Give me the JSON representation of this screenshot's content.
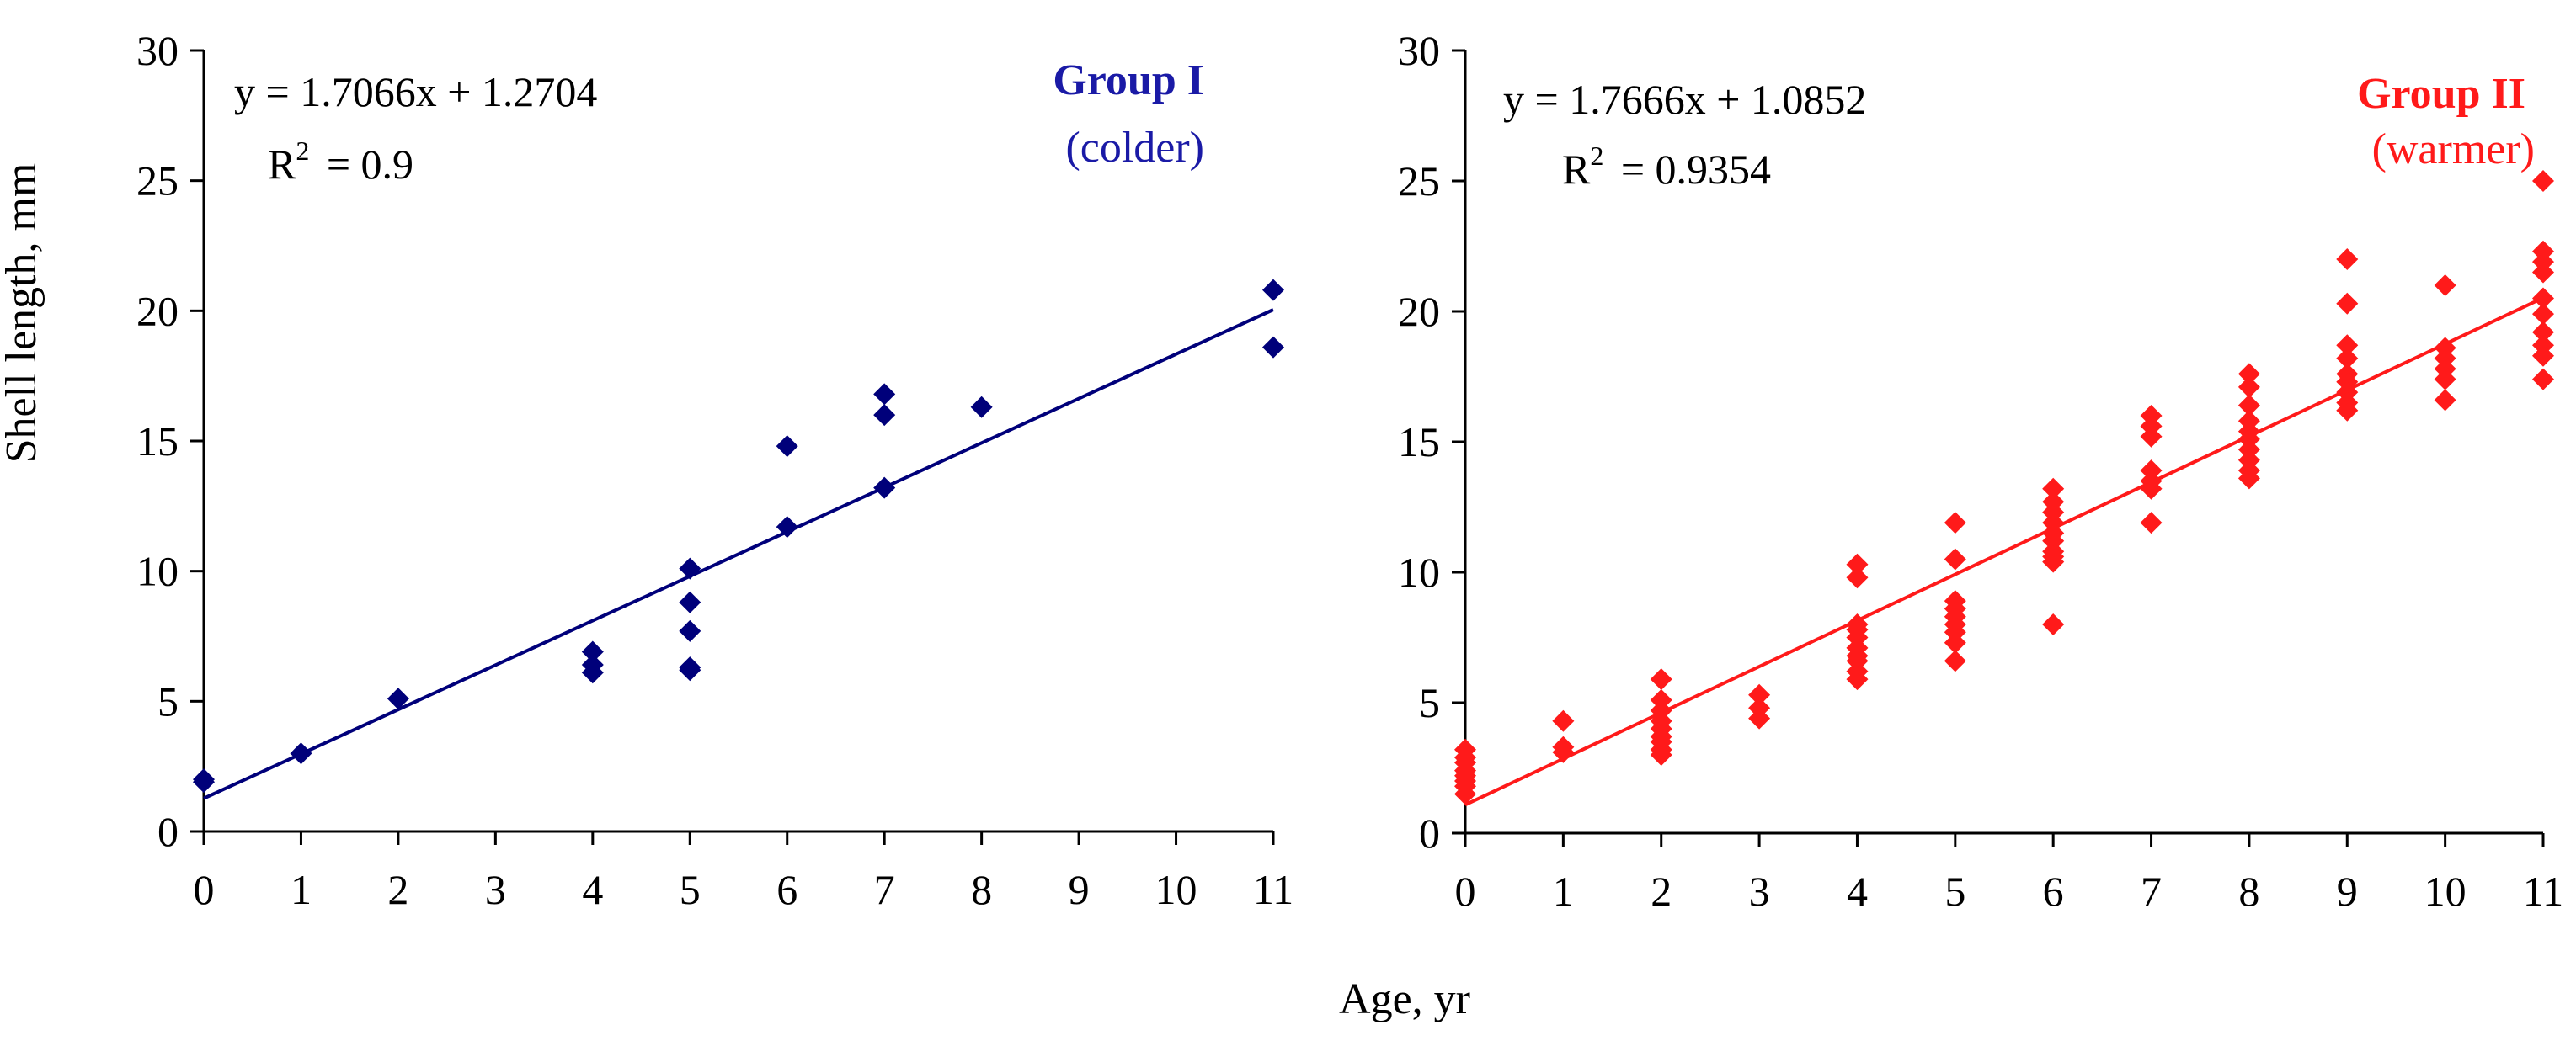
{
  "figure": {
    "ylabel": "Shell length, mm",
    "xlabel": "Age, yr"
  },
  "chart_data": [
    {
      "type": "scatter",
      "title": "Group I",
      "subtitle": "(colder)",
      "title_color": "#1a1aa6",
      "point_color": "#00007a",
      "line_color": "#00007a",
      "xlim": [
        0,
        11
      ],
      "ylim": [
        0,
        30
      ],
      "xticks": [
        0,
        1,
        2,
        3,
        4,
        5,
        6,
        7,
        8,
        9,
        10,
        11
      ],
      "yticks": [
        0,
        5,
        10,
        15,
        20,
        25,
        30
      ],
      "equation": "y = 1.7066x + 1.2704",
      "r2_label": "R",
      "r2_sup": "2",
      "r2_value": " = 0.9",
      "trendline": {
        "slope": 1.7066,
        "intercept": 1.2704
      },
      "x": [
        0,
        0,
        1,
        2,
        4,
        4,
        4,
        5,
        5,
        5,
        5,
        5,
        6,
        6,
        7,
        7,
        7,
        8,
        11,
        11
      ],
      "y": [
        2.0,
        1.9,
        3.0,
        5.1,
        6.9,
        6.4,
        6.1,
        10.1,
        8.8,
        7.7,
        6.3,
        6.2,
        14.8,
        11.7,
        16.8,
        16.0,
        13.2,
        16.3,
        20.8,
        18.6
      ]
    },
    {
      "type": "scatter",
      "title": "Group II",
      "subtitle": "(warmer)",
      "title_color": "#ff1a1a",
      "point_color": "#ff1a1a",
      "line_color": "#ff1a1a",
      "xlim": [
        0,
        11
      ],
      "ylim": [
        0,
        30
      ],
      "xticks": [
        0,
        1,
        2,
        3,
        4,
        5,
        6,
        7,
        8,
        9,
        10,
        11
      ],
      "yticks": [
        0,
        5,
        10,
        15,
        20,
        25,
        30
      ],
      "equation": "y = 1.7666x + 1.0852",
      "r2_label": "R",
      "r2_sup": "2",
      "r2_value": " = 0.9354",
      "trendline": {
        "slope": 1.7666,
        "intercept": 1.0852
      },
      "x": [
        0,
        0,
        0,
        0,
        0,
        0,
        0,
        0,
        1,
        1,
        1,
        2,
        2,
        2,
        2,
        2,
        2,
        2,
        2,
        2,
        3,
        3,
        3,
        4,
        4,
        4,
        4,
        4,
        4,
        4,
        4,
        4,
        4,
        5,
        5,
        5,
        5,
        5,
        5,
        5,
        5,
        5,
        6,
        6,
        6,
        6,
        6,
        6,
        6,
        6,
        6,
        6,
        7,
        7,
        7,
        7,
        7,
        7,
        7,
        8,
        8,
        8,
        8,
        8,
        8,
        8,
        8,
        8,
        8,
        9,
        9,
        9,
        9,
        9,
        9,
        9,
        9,
        9,
        10,
        10,
        10,
        10,
        10,
        10,
        11,
        11,
        11,
        11,
        11,
        11,
        11,
        11,
        11,
        11
      ],
      "y": [
        3.2,
        2.9,
        2.7,
        2.4,
        2.2,
        2.0,
        1.8,
        1.5,
        4.3,
        3.3,
        3.1,
        5.9,
        5.1,
        4.7,
        4.3,
        4.0,
        3.7,
        3.5,
        3.2,
        3.0,
        5.3,
        4.8,
        4.4,
        10.3,
        9.8,
        8.0,
        7.8,
        7.5,
        7.1,
        6.8,
        6.6,
        6.2,
        5.9,
        11.9,
        10.5,
        8.9,
        8.6,
        8.3,
        8.0,
        7.7,
        7.3,
        6.6,
        13.2,
        12.7,
        12.3,
        11.9,
        11.5,
        11.2,
        10.8,
        10.6,
        10.4,
        8.0,
        16.0,
        15.6,
        15.2,
        13.9,
        13.5,
        13.2,
        11.9,
        17.6,
        17.1,
        16.4,
        15.8,
        15.4,
        15.1,
        14.7,
        14.3,
        13.9,
        13.6,
        22.0,
        20.3,
        18.7,
        18.2,
        17.6,
        17.3,
        16.9,
        16.5,
        16.2,
        21.0,
        18.6,
        18.2,
        17.8,
        17.4,
        16.6,
        25.0,
        22.3,
        21.9,
        21.5,
        20.5,
        19.9,
        19.2,
        18.7,
        18.3,
        17.4
      ]
    }
  ]
}
